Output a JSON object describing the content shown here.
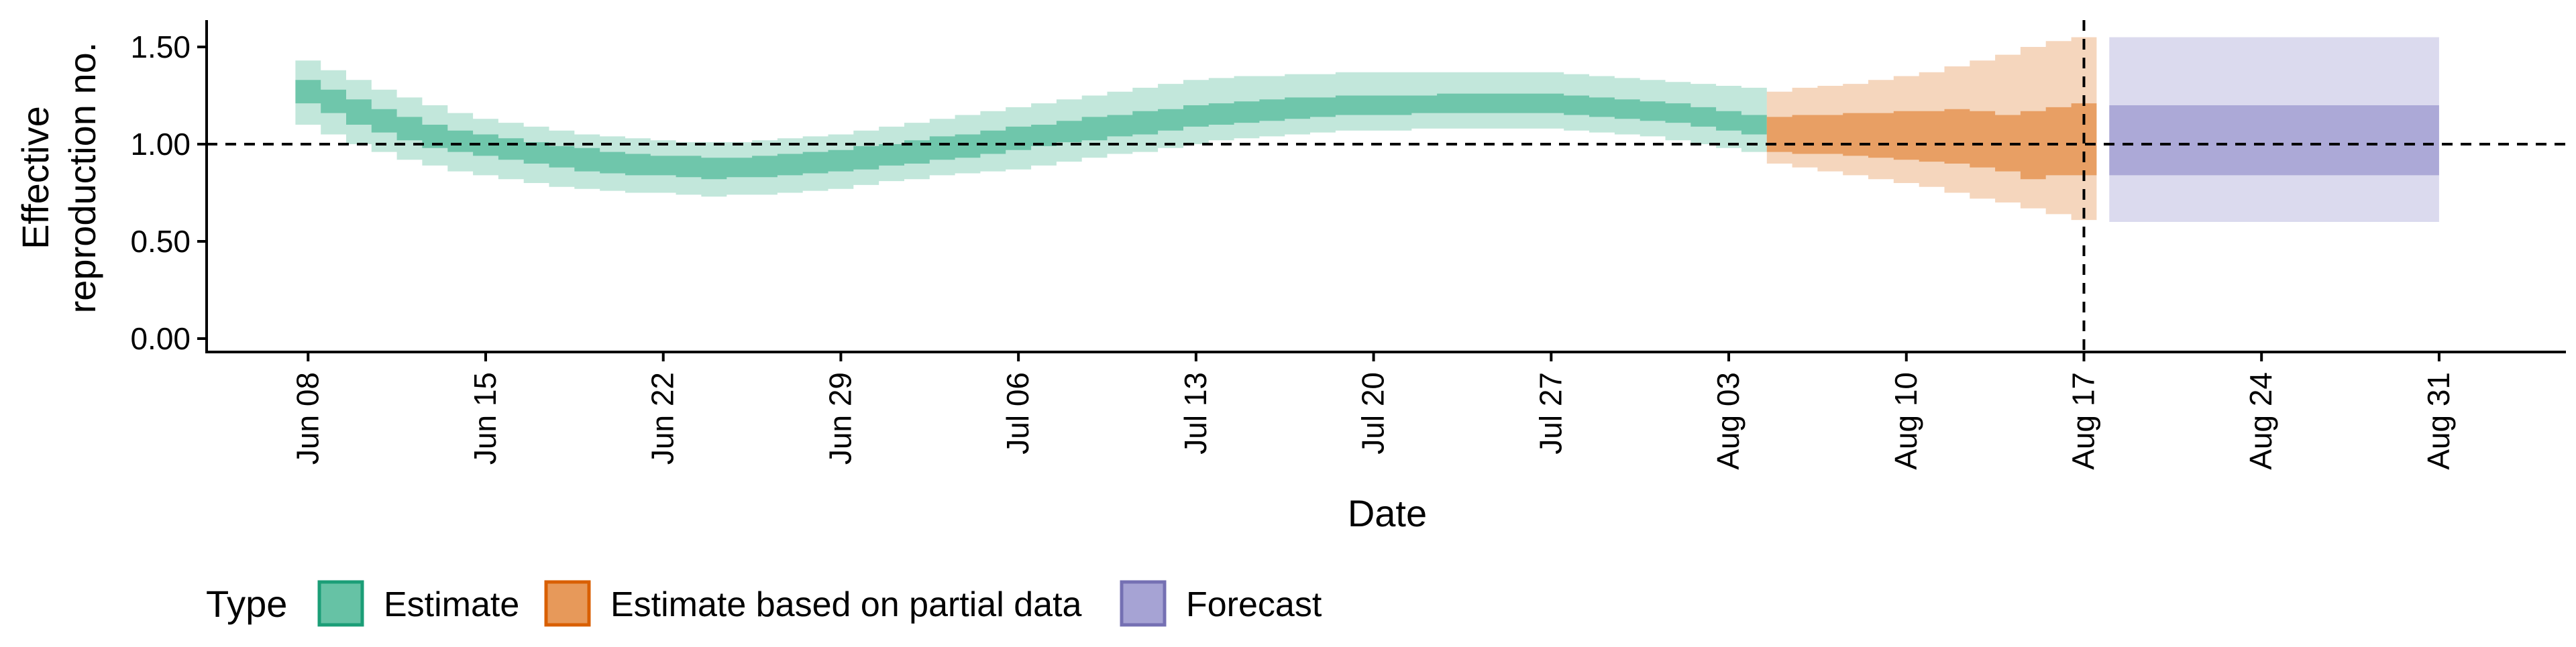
{
  "chart_data": {
    "type": "area",
    "xlabel": "Date",
    "ylabel_lines": [
      "Effective",
      "reproduction no."
    ],
    "ylim": [
      0,
      1.6
    ],
    "yticks": [
      0.0,
      0.5,
      1.0,
      1.5
    ],
    "ytick_labels": [
      "0.00",
      "0.50",
      "1.00",
      "1.50"
    ],
    "x_ticks": [
      "2020-06-08",
      "2020-06-15",
      "2020-06-22",
      "2020-06-29",
      "2020-07-06",
      "2020-07-13",
      "2020-07-20",
      "2020-07-27",
      "2020-08-03",
      "2020-08-10",
      "2020-08-17",
      "2020-08-24",
      "2020-08-31"
    ],
    "xtick_labels": [
      "Jun 08",
      "Jun 15",
      "Jun 22",
      "Jun 29",
      "Jul 06",
      "Jul 13",
      "Jul 20",
      "Jul 27",
      "Aug 03",
      "Aug 10",
      "Aug 17",
      "Aug 24",
      "Aug 31"
    ],
    "xlim": [
      "2020-06-04",
      "2020-09-05"
    ],
    "reference_lines": {
      "horizontal_y": 1.0,
      "vertical_x": "2020-08-17",
      "style": "dashed"
    },
    "grid": false,
    "legend": {
      "title": "Type",
      "position": "bottom-left",
      "entries": [
        "Estimate",
        "Estimate based on partial data",
        "Forecast"
      ]
    },
    "series": [
      {
        "name": "Estimate",
        "fill_color": "#66C2A5",
        "edge_color": "#1B9E77",
        "x": [
          "2020-06-08",
          "2020-06-09",
          "2020-06-10",
          "2020-06-11",
          "2020-06-12",
          "2020-06-13",
          "2020-06-14",
          "2020-06-15",
          "2020-06-16",
          "2020-06-17",
          "2020-06-18",
          "2020-06-19",
          "2020-06-20",
          "2020-06-21",
          "2020-06-22",
          "2020-06-23",
          "2020-06-24",
          "2020-06-25",
          "2020-06-26",
          "2020-06-27",
          "2020-06-28",
          "2020-06-29",
          "2020-06-30",
          "2020-07-01",
          "2020-07-02",
          "2020-07-03",
          "2020-07-04",
          "2020-07-05",
          "2020-07-06",
          "2020-07-07",
          "2020-07-08",
          "2020-07-09",
          "2020-07-10",
          "2020-07-11",
          "2020-07-12",
          "2020-07-13",
          "2020-07-14",
          "2020-07-15",
          "2020-07-16",
          "2020-07-17",
          "2020-07-18",
          "2020-07-19",
          "2020-07-20",
          "2020-07-21",
          "2020-07-22",
          "2020-07-23",
          "2020-07-24",
          "2020-07-25",
          "2020-07-26",
          "2020-07-27",
          "2020-07-28",
          "2020-07-29",
          "2020-07-30",
          "2020-07-31",
          "2020-08-01",
          "2020-08-02",
          "2020-08-03",
          "2020-08-04"
        ],
        "lower_90": [
          1.1,
          1.05,
          1.0,
          0.96,
          0.92,
          0.89,
          0.86,
          0.84,
          0.82,
          0.8,
          0.78,
          0.77,
          0.76,
          0.75,
          0.75,
          0.74,
          0.73,
          0.74,
          0.74,
          0.75,
          0.76,
          0.77,
          0.79,
          0.81,
          0.82,
          0.84,
          0.85,
          0.86,
          0.87,
          0.89,
          0.91,
          0.93,
          0.95,
          0.96,
          0.98,
          1.0,
          1.02,
          1.03,
          1.04,
          1.05,
          1.06,
          1.07,
          1.07,
          1.07,
          1.08,
          1.08,
          1.08,
          1.08,
          1.08,
          1.08,
          1.07,
          1.06,
          1.05,
          1.04,
          1.02,
          1.0,
          0.98,
          0.96
        ],
        "lower_50": [
          1.21,
          1.16,
          1.1,
          1.06,
          1.02,
          0.98,
          0.96,
          0.94,
          0.92,
          0.9,
          0.88,
          0.86,
          0.85,
          0.84,
          0.84,
          0.83,
          0.82,
          0.83,
          0.83,
          0.84,
          0.85,
          0.86,
          0.87,
          0.89,
          0.9,
          0.92,
          0.93,
          0.95,
          0.97,
          0.99,
          1.01,
          1.02,
          1.04,
          1.05,
          1.07,
          1.09,
          1.1,
          1.11,
          1.12,
          1.13,
          1.14,
          1.15,
          1.15,
          1.15,
          1.16,
          1.16,
          1.16,
          1.16,
          1.16,
          1.16,
          1.15,
          1.14,
          1.13,
          1.12,
          1.11,
          1.09,
          1.07,
          1.05
        ],
        "upper_50": [
          1.33,
          1.28,
          1.23,
          1.18,
          1.14,
          1.1,
          1.07,
          1.05,
          1.03,
          1.01,
          0.99,
          0.98,
          0.96,
          0.95,
          0.94,
          0.94,
          0.93,
          0.93,
          0.94,
          0.95,
          0.96,
          0.97,
          0.99,
          1.0,
          1.02,
          1.04,
          1.05,
          1.07,
          1.09,
          1.1,
          1.12,
          1.14,
          1.15,
          1.17,
          1.18,
          1.2,
          1.21,
          1.22,
          1.23,
          1.24,
          1.24,
          1.25,
          1.25,
          1.25,
          1.25,
          1.26,
          1.26,
          1.26,
          1.26,
          1.26,
          1.25,
          1.24,
          1.23,
          1.22,
          1.21,
          1.19,
          1.17,
          1.15
        ],
        "upper_90": [
          1.43,
          1.38,
          1.33,
          1.28,
          1.24,
          1.2,
          1.16,
          1.13,
          1.11,
          1.09,
          1.07,
          1.05,
          1.04,
          1.03,
          1.02,
          1.01,
          1.01,
          1.01,
          1.02,
          1.03,
          1.04,
          1.05,
          1.07,
          1.09,
          1.11,
          1.13,
          1.15,
          1.17,
          1.19,
          1.21,
          1.23,
          1.25,
          1.27,
          1.29,
          1.31,
          1.33,
          1.34,
          1.35,
          1.35,
          1.36,
          1.36,
          1.37,
          1.37,
          1.37,
          1.37,
          1.37,
          1.37,
          1.37,
          1.37,
          1.37,
          1.36,
          1.35,
          1.34,
          1.33,
          1.32,
          1.31,
          1.3,
          1.29
        ]
      },
      {
        "name": "Estimate based on partial data",
        "fill_color": "#E7995A",
        "edge_color": "#D95F02",
        "x": [
          "2020-08-05",
          "2020-08-06",
          "2020-08-07",
          "2020-08-08",
          "2020-08-09",
          "2020-08-10",
          "2020-08-11",
          "2020-08-12",
          "2020-08-13",
          "2020-08-14",
          "2020-08-15",
          "2020-08-16",
          "2020-08-17"
        ],
        "lower_90": [
          0.9,
          0.88,
          0.86,
          0.84,
          0.82,
          0.8,
          0.78,
          0.75,
          0.72,
          0.7,
          0.67,
          0.64,
          0.61
        ],
        "lower_50": [
          0.96,
          0.95,
          0.95,
          0.94,
          0.93,
          0.92,
          0.91,
          0.9,
          0.88,
          0.86,
          0.82,
          0.84,
          0.84
        ],
        "upper_50": [
          1.14,
          1.15,
          1.15,
          1.16,
          1.16,
          1.17,
          1.17,
          1.18,
          1.17,
          1.15,
          1.17,
          1.19,
          1.21
        ],
        "upper_90": [
          1.27,
          1.29,
          1.3,
          1.31,
          1.33,
          1.35,
          1.37,
          1.4,
          1.43,
          1.46,
          1.5,
          1.53,
          1.55
        ]
      },
      {
        "name": "Forecast",
        "fill_color": "#A6A3D4",
        "edge_color": "#7570B3",
        "x": [
          "2020-08-18",
          "2020-08-31"
        ],
        "lower_90": [
          0.6,
          0.6
        ],
        "lower_50": [
          0.84,
          0.84
        ],
        "upper_50": [
          1.2,
          1.2
        ],
        "upper_90": [
          1.55,
          1.55
        ]
      }
    ]
  }
}
